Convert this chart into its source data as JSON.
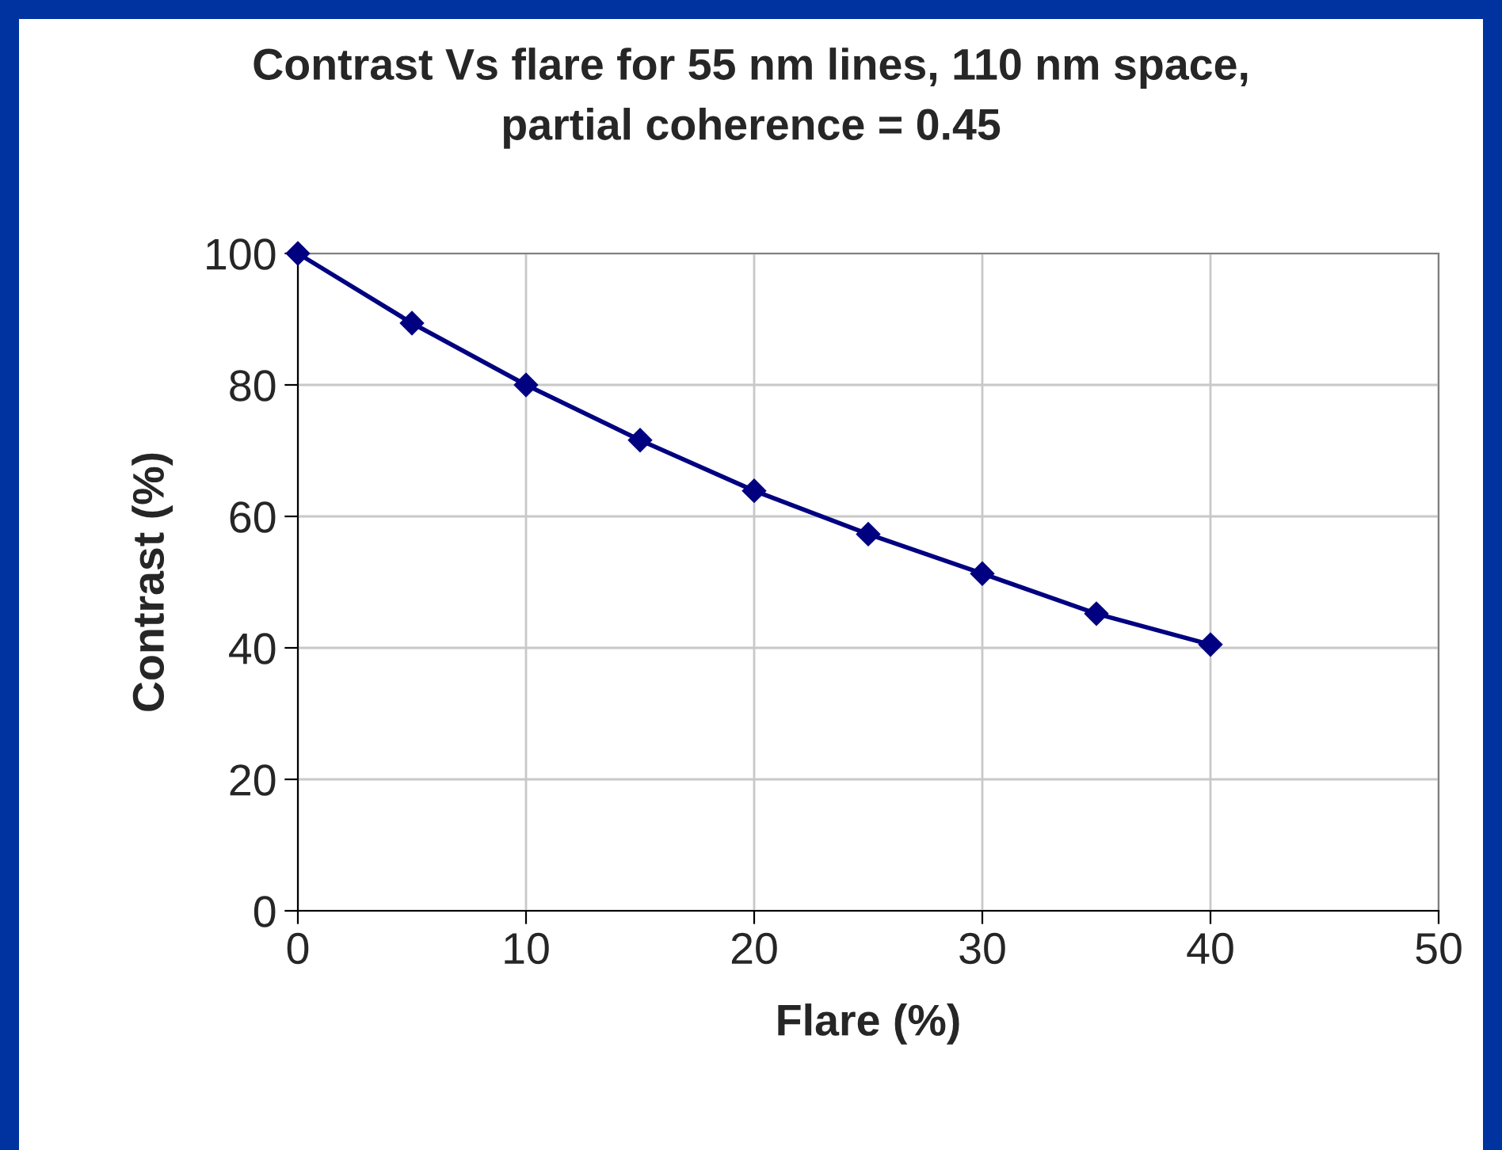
{
  "chart_data": {
    "type": "line",
    "title": "Contrast Vs flare for 55 nm lines, 110 nm space,\npartial coherence = 0.45",
    "xlabel": "Flare (%)",
    "ylabel": "Contrast (%)",
    "x": [
      0,
      5,
      10,
      15,
      20,
      25,
      30,
      35,
      40
    ],
    "series": [
      {
        "color": "#000080",
        "values": [
          100,
          89.4,
          80,
          71.6,
          63.9,
          57.3,
          51.3,
          45.2,
          40.5
        ]
      }
    ],
    "xlim": [
      0,
      50
    ],
    "xticks": [
      0,
      10,
      20,
      30,
      40,
      50
    ],
    "ylim": [
      0,
      100
    ],
    "yticks": [
      0,
      20,
      40,
      60,
      80,
      100
    ],
    "grid": true,
    "marker": "diamond",
    "line_style": "solid"
  }
}
